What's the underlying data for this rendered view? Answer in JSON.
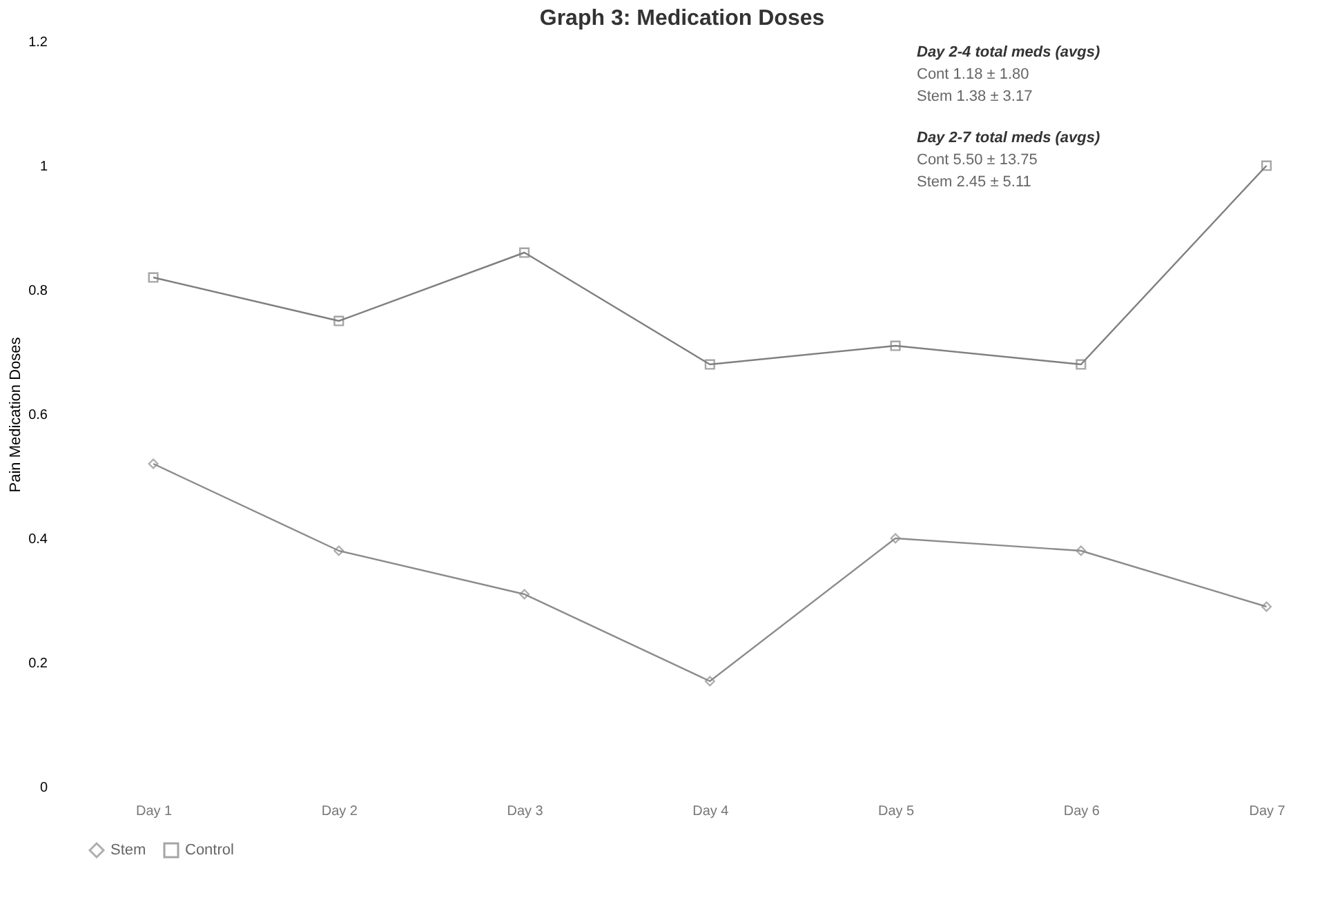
{
  "chart_data": {
    "type": "line",
    "title": "Graph 3: Medication Doses",
    "ylabel": "Pain Medication Doses",
    "categories": [
      "Day 1",
      "Day 2",
      "Day 3",
      "Day 4",
      "Day 5",
      "Day 6",
      "Day 7"
    ],
    "series": [
      {
        "name": "Stem",
        "color": "#8c8c8c",
        "marker": "diamond",
        "values": [
          0.52,
          0.38,
          0.31,
          0.17,
          0.4,
          0.38,
          0.29
        ]
      },
      {
        "name": "Control",
        "color": "#7f7f7f",
        "marker": "square",
        "values": [
          0.82,
          0.75,
          0.86,
          0.68,
          0.71,
          0.68,
          1.0
        ]
      }
    ],
    "ylim": [
      0,
      1.2
    ],
    "yticks": [
      0,
      0.2,
      0.4,
      0.6,
      0.8,
      1,
      1.2
    ],
    "grid": false,
    "legend": "bottom",
    "annotations": [
      "Day 2-4 total meds (avgs)",
      "Cont 1.18 ± 1.80",
      "Stem 1.38 ± 3.17",
      "Day 2-7 total meds (avgs)",
      "Cont 5.50 ± 13.75",
      "Stem 2.45 ± 5.11"
    ]
  }
}
